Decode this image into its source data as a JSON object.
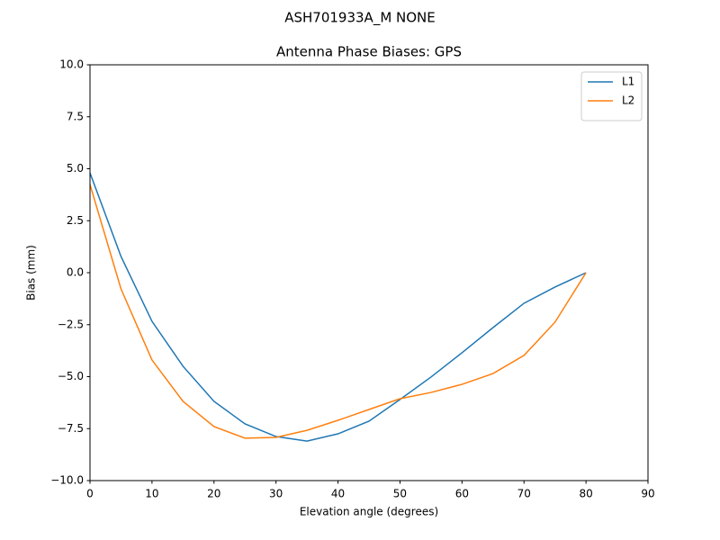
{
  "chart_data": {
    "type": "line",
    "suptitle": "ASH701933A_M    NONE",
    "title": "Antenna Phase Biases: GPS",
    "xlabel": "Elevation angle (degrees)",
    "ylabel": "Bias (mm)",
    "x": [
      0,
      5,
      10,
      15,
      20,
      25,
      30,
      35,
      40,
      45,
      50,
      55,
      60,
      65,
      70,
      75,
      80
    ],
    "series": [
      {
        "name": "L1",
        "color": "#1f77b4",
        "values": [
          4.8,
          0.78,
          -2.34,
          -4.5,
          -6.19,
          -7.27,
          -7.88,
          -8.1,
          -7.75,
          -7.14,
          -6.1,
          -5.02,
          -3.85,
          -2.64,
          -1.47,
          -0.69,
          0
        ]
      },
      {
        "name": "L2",
        "color": "#ff7f0e",
        "values": [
          4.24,
          -0.78,
          -4.2,
          -6.19,
          -7.4,
          -7.96,
          -7.92,
          -7.58,
          -7.1,
          -6.58,
          -6.06,
          -5.76,
          -5.37,
          -4.85,
          -3.98,
          -2.38,
          0
        ]
      }
    ],
    "xlim": [
      0,
      90
    ],
    "xticks": [
      0,
      10,
      20,
      30,
      40,
      50,
      60,
      70,
      80,
      90
    ],
    "ylim": [
      -10,
      10
    ],
    "yticks": [
      {
        "value": -10,
        "label": "−10.0"
      },
      {
        "value": -7.5,
        "label": "−7.5"
      },
      {
        "value": -5,
        "label": "−5.0"
      },
      {
        "value": -2.5,
        "label": "−2.5"
      },
      {
        "value": 0,
        "label": "0.0"
      },
      {
        "value": 2.5,
        "label": "2.5"
      },
      {
        "value": 5,
        "label": "5.0"
      },
      {
        "value": 7.5,
        "label": "7.5"
      },
      {
        "value": 10,
        "label": "10.0"
      }
    ],
    "grid": false,
    "legend": "upper right"
  }
}
